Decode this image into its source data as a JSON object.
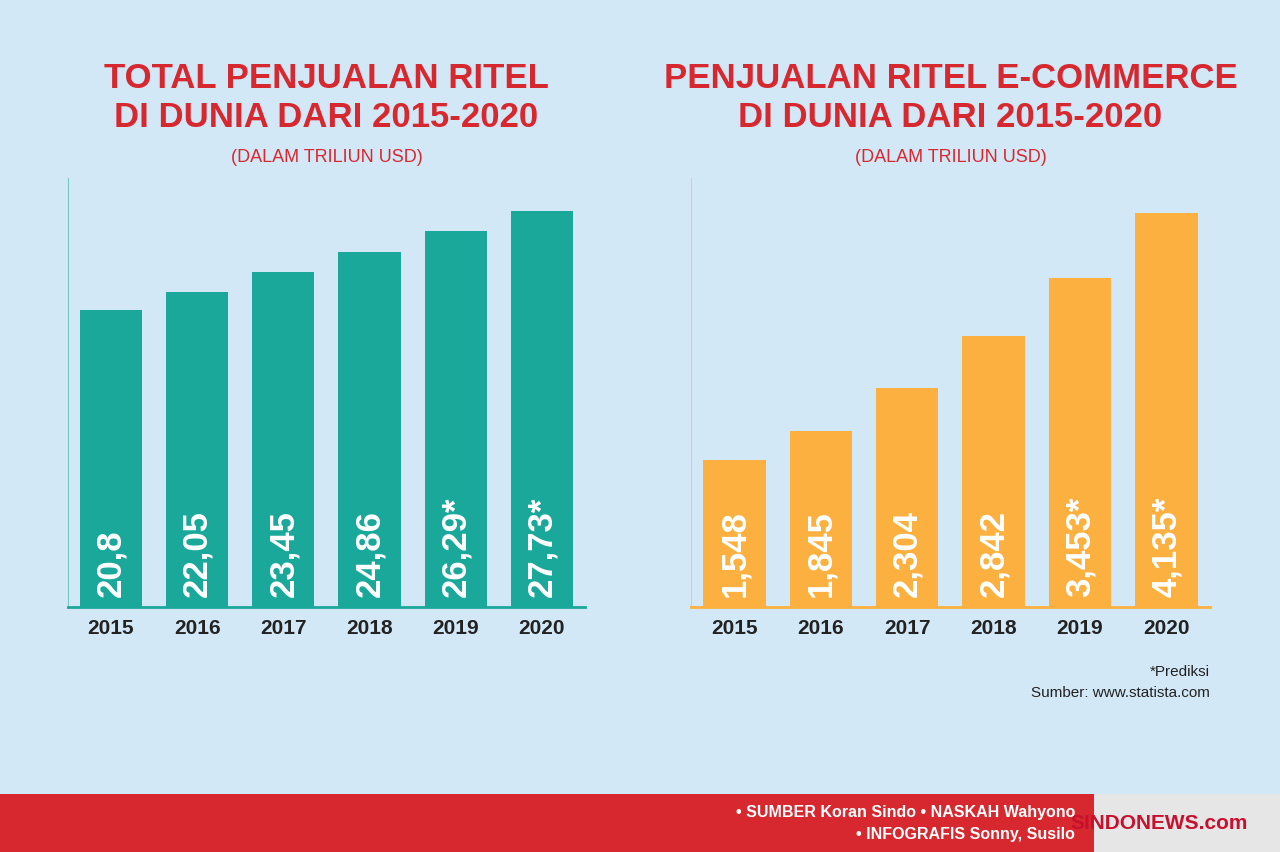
{
  "chart_data": [
    {
      "type": "bar",
      "title": "TOTAL PENJUALAN RITEL\nDI DUNIA DARI 2015-2020",
      "subtitle": "(DALAM TRILIUN USD)",
      "categories": [
        "2015",
        "2016",
        "2017",
        "2018",
        "2019",
        "2020"
      ],
      "values": [
        20.8,
        22.05,
        23.45,
        24.86,
        26.29,
        27.73
      ],
      "value_labels": [
        "20,8",
        "22,05",
        "23,45",
        "24,86",
        "26,29*",
        "27,73*"
      ],
      "color": "#1aa89a",
      "ylim": [
        0,
        30
      ],
      "grid": false,
      "data_labels": true,
      "tick_labels": "x"
    },
    {
      "type": "bar",
      "title": "PENJUALAN RITEL E-COMMERCE\nDI DUNIA DARI 2015-2020",
      "subtitle": "(DALAM TRILIUN USD)",
      "categories": [
        "2015",
        "2016",
        "2017",
        "2018",
        "2019",
        "2020"
      ],
      "values": [
        1.548,
        1.845,
        2.304,
        2.842,
        3.453,
        4.135
      ],
      "value_labels": [
        "1,548",
        "1,845",
        "2,304",
        "2,842",
        "3,453*",
        "4,135*"
      ],
      "color": "#fbb040",
      "ylim": [
        0,
        4.5
      ],
      "grid": false,
      "data_labels": true,
      "tick_labels": "x"
    }
  ],
  "notes": [
    "*Prediksi",
    "Sumber: www.statista.com"
  ],
  "footer": {
    "credits": [
      "• SUMBER Koran Sindo • NASKAH Wahyono",
      "• INFOGRAFIS Sonny, Susilo"
    ],
    "brand": "SINDONEWS.com"
  }
}
